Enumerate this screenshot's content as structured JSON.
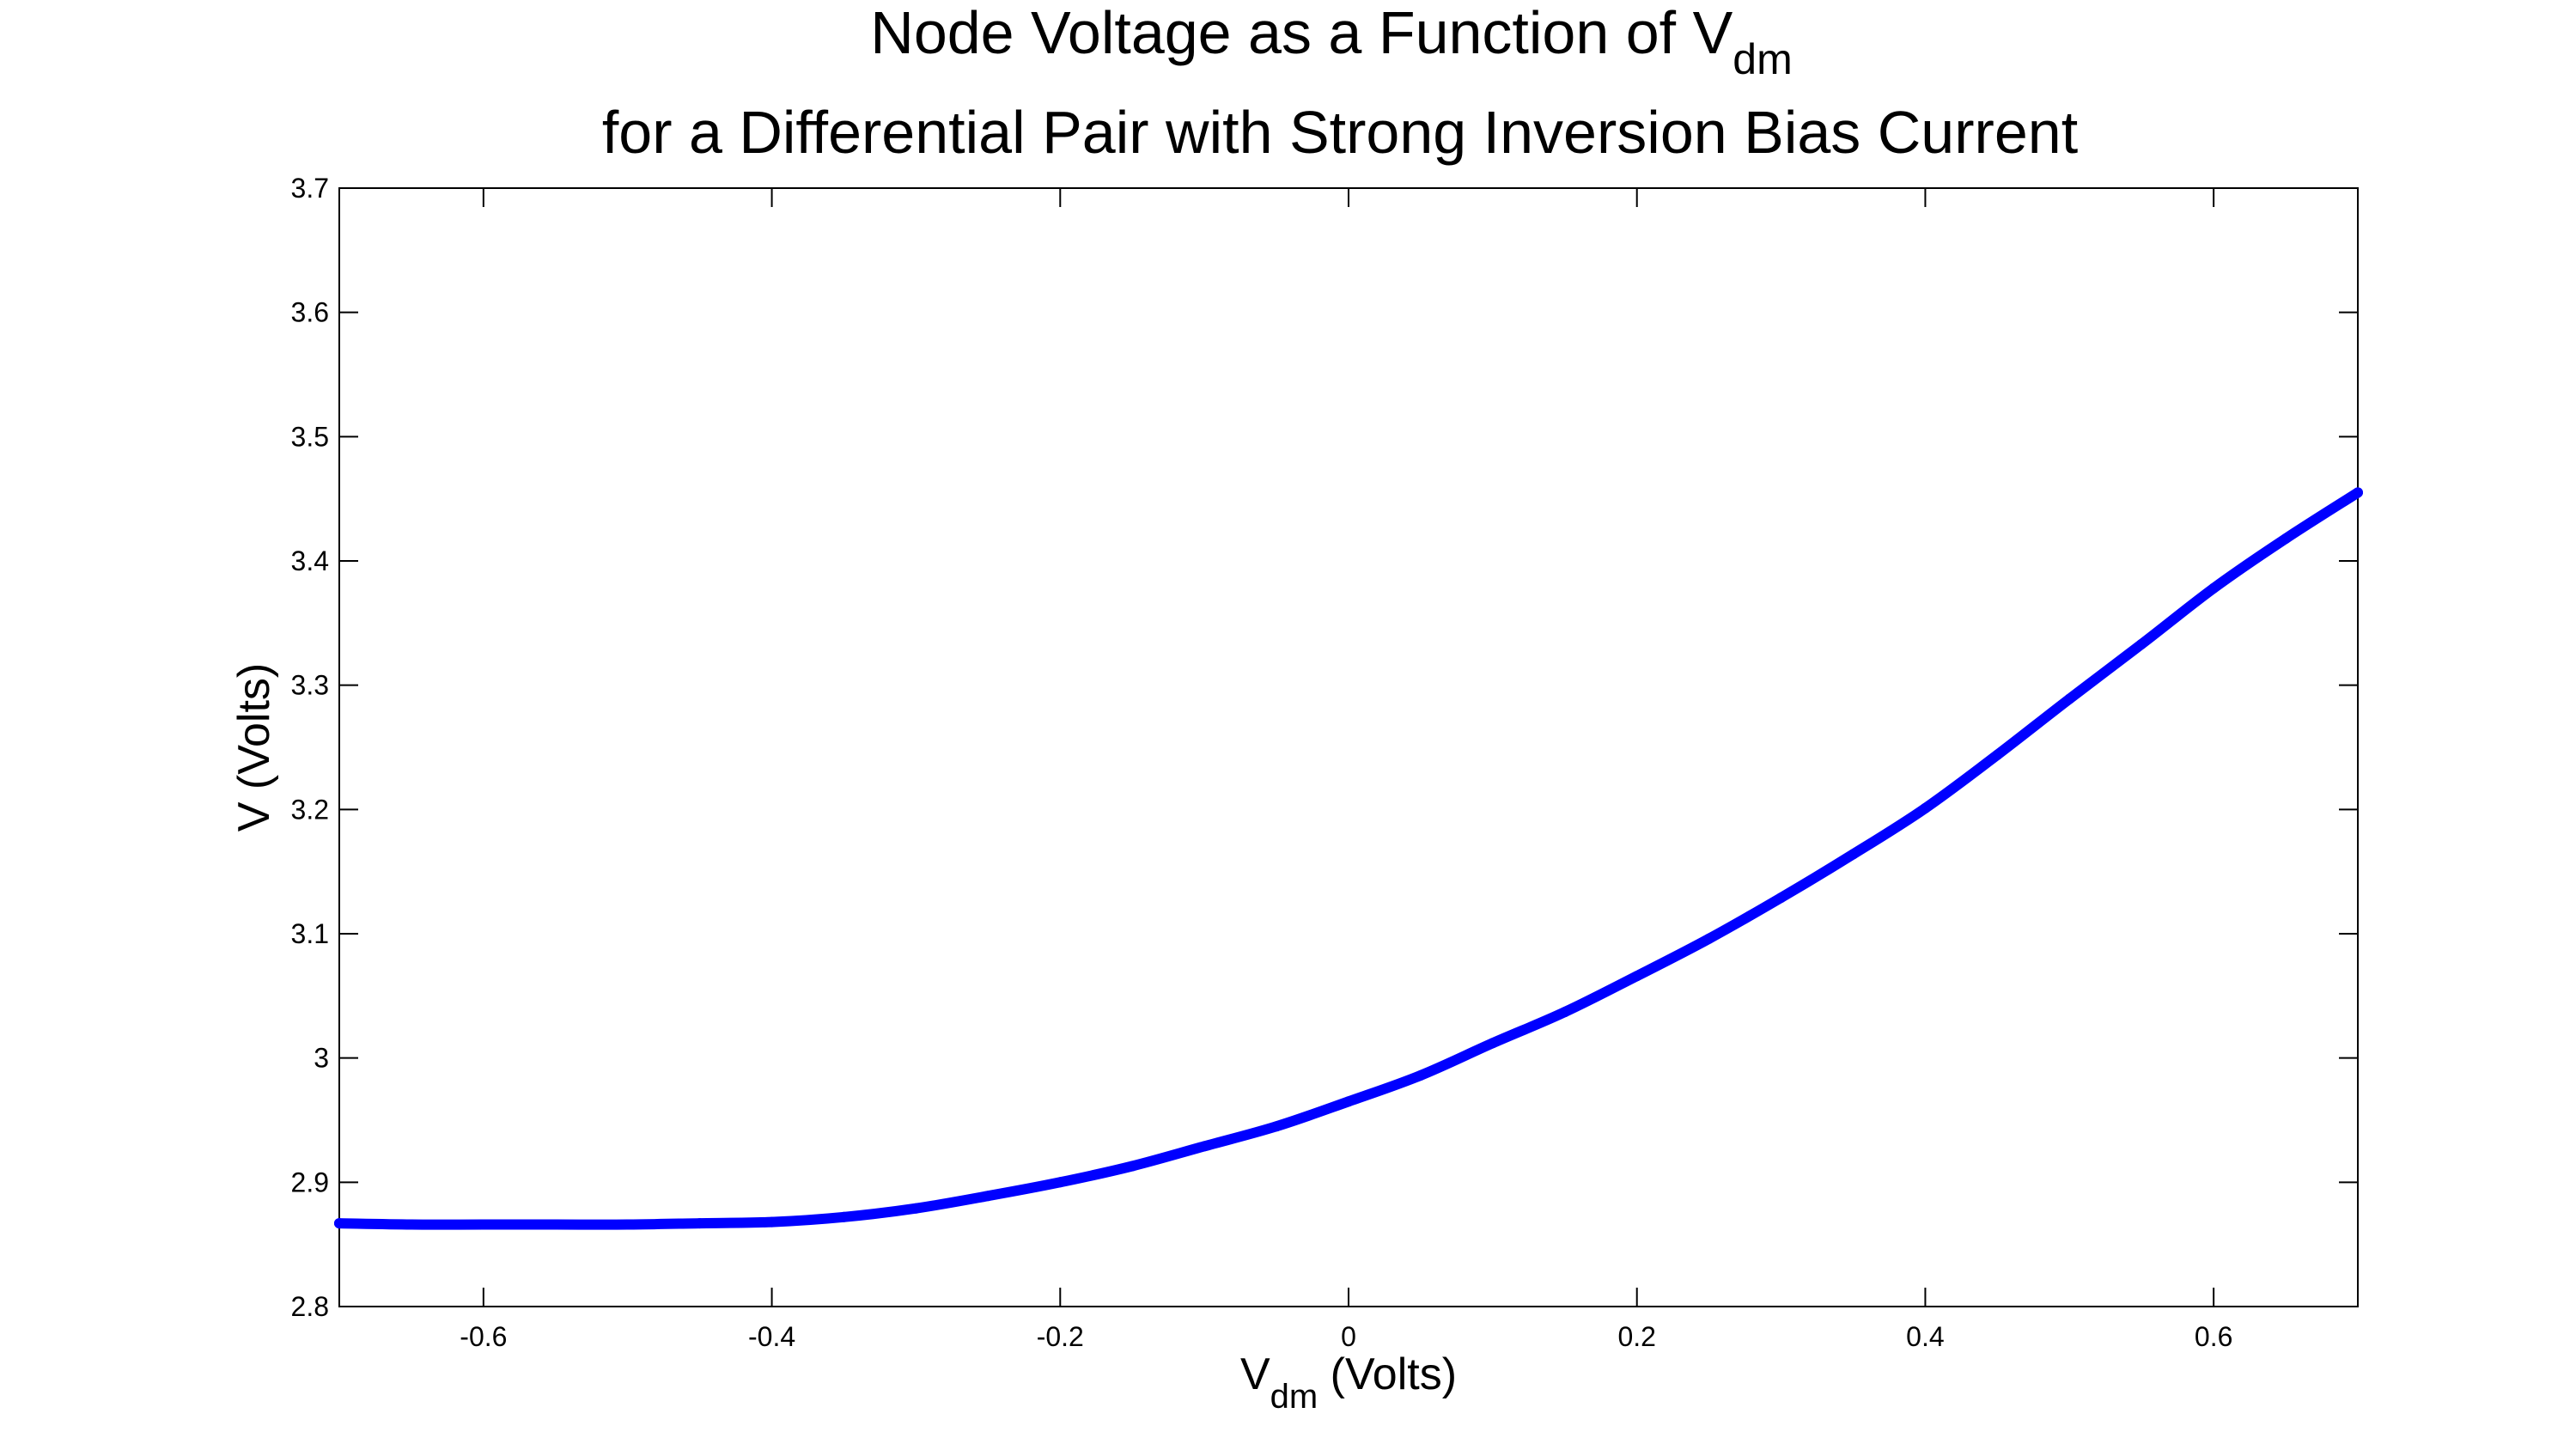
{
  "chart_data": {
    "type": "line",
    "title": {
      "line1": "Node Voltage as a Function of V",
      "line1_subscript": "dm",
      "line2": "for a Differential Pair with Strong Inversion Bias Current"
    },
    "xlabel": {
      "main": "V",
      "subscript": "dm",
      "suffix": " (Volts)"
    },
    "ylabel": "V (Volts)",
    "xlim": [
      -0.7,
      0.7
    ],
    "ylim": [
      2.8,
      3.7
    ],
    "xticks": [
      -0.6,
      -0.4,
      -0.2,
      0,
      0.2,
      0.4,
      0.6
    ],
    "xtick_labels": [
      "-0.6",
      "-0.4",
      "-0.2",
      "0",
      "0.2",
      "0.4",
      "0.6"
    ],
    "yticks": [
      2.8,
      2.9,
      3.0,
      3.1,
      3.2,
      3.3,
      3.4,
      3.5,
      3.6,
      3.7
    ],
    "ytick_labels": [
      "2.8",
      "2.9",
      "3",
      "3.1",
      "3.2",
      "3.3",
      "3.4",
      "3.5",
      "3.6",
      "3.7"
    ],
    "grid": false,
    "box": true,
    "series": [
      {
        "color": "#0000ff",
        "x": [
          -0.7,
          -0.65,
          -0.6,
          -0.55,
          -0.5,
          -0.45,
          -0.4,
          -0.35,
          -0.3,
          -0.25,
          -0.2,
          -0.15,
          -0.1,
          -0.05,
          0.0,
          0.05,
          0.1,
          0.15,
          0.2,
          0.25,
          0.3,
          0.35,
          0.4,
          0.45,
          0.5,
          0.55,
          0.6,
          0.65,
          0.7
        ],
        "y": [
          2.867,
          2.866,
          2.866,
          2.866,
          2.866,
          2.867,
          2.868,
          2.872,
          2.879,
          2.889,
          2.9,
          2.913,
          2.929,
          2.945,
          2.965,
          2.986,
          3.012,
          3.037,
          3.066,
          3.096,
          3.129,
          3.164,
          3.201,
          3.244,
          3.289,
          3.333,
          3.378,
          3.418,
          3.455
        ]
      }
    ]
  },
  "colors": {
    "line": "#0000ff",
    "axes": "#000000",
    "background": "#ffffff"
  }
}
